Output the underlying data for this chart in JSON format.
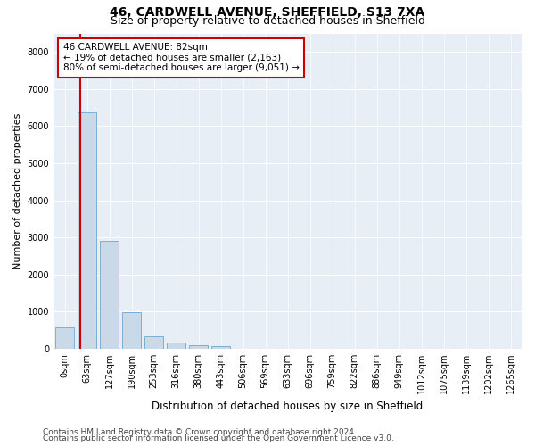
{
  "title_line1": "46, CARDWELL AVENUE, SHEFFIELD, S13 7XA",
  "title_line2": "Size of property relative to detached houses in Sheffield",
  "xlabel": "Distribution of detached houses by size in Sheffield",
  "ylabel": "Number of detached properties",
  "bar_labels": [
    "0sqm",
    "63sqm",
    "127sqm",
    "190sqm",
    "253sqm",
    "316sqm",
    "380sqm",
    "443sqm",
    "506sqm",
    "569sqm",
    "633sqm",
    "696sqm",
    "759sqm",
    "822sqm",
    "886sqm",
    "949sqm",
    "1012sqm",
    "1075sqm",
    "1139sqm",
    "1202sqm",
    "1265sqm"
  ],
  "bar_values": [
    580,
    6380,
    2900,
    970,
    340,
    155,
    95,
    60,
    5,
    3,
    2,
    1,
    1,
    0,
    0,
    0,
    0,
    0,
    0,
    0,
    0
  ],
  "bar_color": "#c9d9e8",
  "bar_edge_color": "#7bafd4",
  "annotation_text": "46 CARDWELL AVENUE: 82sqm\n← 19% of detached houses are smaller (2,163)\n80% of semi-detached houses are larger (9,051) →",
  "annotation_box_color": "#cc0000",
  "vline_color": "#cc0000",
  "ylim": [
    0,
    8500
  ],
  "yticks": [
    0,
    1000,
    2000,
    3000,
    4000,
    5000,
    6000,
    7000,
    8000
  ],
  "footer_line1": "Contains HM Land Registry data © Crown copyright and database right 2024.",
  "footer_line2": "Contains public sector information licensed under the Open Government Licence v3.0.",
  "plot_bg_color": "#e8eef5",
  "title1_fontsize": 10,
  "title2_fontsize": 9,
  "annotation_fontsize": 7.5,
  "ylabel_fontsize": 8,
  "xlabel_fontsize": 8.5,
  "footer_fontsize": 6.5,
  "tick_fontsize": 7
}
